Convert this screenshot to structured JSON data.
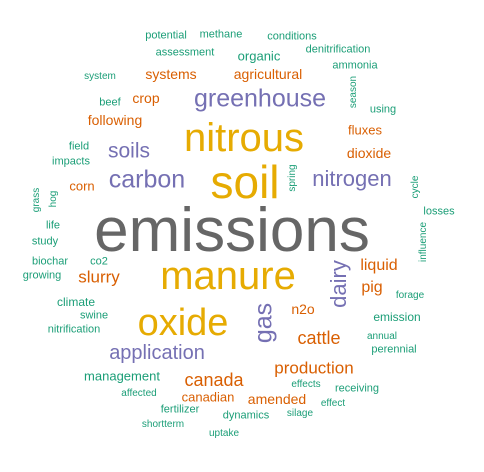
{
  "colors": {
    "green": "#1b9e77",
    "orange": "#d95f02",
    "purple": "#7570b3",
    "gold": "#e6ab02",
    "gray": "#666666"
  },
  "words": [
    {
      "text": "emissions",
      "color": "gray"
    },
    {
      "text": "soil",
      "color": "gold"
    },
    {
      "text": "nitrous",
      "color": "gold"
    },
    {
      "text": "manure",
      "color": "gold"
    },
    {
      "text": "oxide",
      "color": "gold"
    },
    {
      "text": "greenhouse",
      "color": "purple"
    },
    {
      "text": "carbon",
      "color": "purple"
    },
    {
      "text": "nitrogen",
      "color": "purple"
    },
    {
      "text": "application",
      "color": "purple"
    },
    {
      "text": "dairy",
      "color": "purple"
    },
    {
      "text": "gas",
      "color": "purple"
    },
    {
      "text": "soils",
      "color": "purple"
    },
    {
      "text": "canada",
      "color": "orange"
    },
    {
      "text": "production",
      "color": "orange"
    },
    {
      "text": "cattle",
      "color": "orange"
    },
    {
      "text": "slurry",
      "color": "orange"
    },
    {
      "text": "liquid",
      "color": "orange"
    },
    {
      "text": "pig",
      "color": "orange"
    },
    {
      "text": "dioxide",
      "color": "orange"
    },
    {
      "text": "fluxes",
      "color": "orange"
    },
    {
      "text": "agricultural",
      "color": "orange"
    },
    {
      "text": "systems",
      "color": "orange"
    },
    {
      "text": "crop",
      "color": "orange"
    },
    {
      "text": "following",
      "color": "orange"
    },
    {
      "text": "corn",
      "color": "orange"
    },
    {
      "text": "n2o",
      "color": "orange"
    },
    {
      "text": "amended",
      "color": "orange"
    },
    {
      "text": "canadian",
      "color": "orange"
    },
    {
      "text": "organic",
      "color": "green"
    },
    {
      "text": "potential",
      "color": "green"
    },
    {
      "text": "methane",
      "color": "green"
    },
    {
      "text": "conditions",
      "color": "green"
    },
    {
      "text": "assessment",
      "color": "green"
    },
    {
      "text": "denitrification",
      "color": "green"
    },
    {
      "text": "ammonia",
      "color": "green"
    },
    {
      "text": "system",
      "color": "green"
    },
    {
      "text": "season",
      "color": "green"
    },
    {
      "text": "beef",
      "color": "green"
    },
    {
      "text": "using",
      "color": "green"
    },
    {
      "text": "field",
      "color": "green"
    },
    {
      "text": "impacts",
      "color": "green"
    },
    {
      "text": "spring",
      "color": "green"
    },
    {
      "text": "grass",
      "color": "green"
    },
    {
      "text": "hog",
      "color": "green"
    },
    {
      "text": "cycle",
      "color": "green"
    },
    {
      "text": "life",
      "color": "green"
    },
    {
      "text": "losses",
      "color": "green"
    },
    {
      "text": "study",
      "color": "green"
    },
    {
      "text": "influence",
      "color": "green"
    },
    {
      "text": "biochar",
      "color": "green"
    },
    {
      "text": "co2",
      "color": "green"
    },
    {
      "text": "growing",
      "color": "green"
    },
    {
      "text": "climate",
      "color": "green"
    },
    {
      "text": "forage",
      "color": "green"
    },
    {
      "text": "swine",
      "color": "green"
    },
    {
      "text": "emission",
      "color": "green"
    },
    {
      "text": "nitrification",
      "color": "green"
    },
    {
      "text": "annual",
      "color": "green"
    },
    {
      "text": "perennial",
      "color": "green"
    },
    {
      "text": "management",
      "color": "green"
    },
    {
      "text": "effects",
      "color": "green"
    },
    {
      "text": "receiving",
      "color": "green"
    },
    {
      "text": "affected",
      "color": "green"
    },
    {
      "text": "effect",
      "color": "green"
    },
    {
      "text": "fertilizer",
      "color": "green"
    },
    {
      "text": "dynamics",
      "color": "green"
    },
    {
      "text": "silage",
      "color": "green"
    },
    {
      "text": "shortterm",
      "color": "green"
    },
    {
      "text": "uptake",
      "color": "green"
    }
  ]
}
